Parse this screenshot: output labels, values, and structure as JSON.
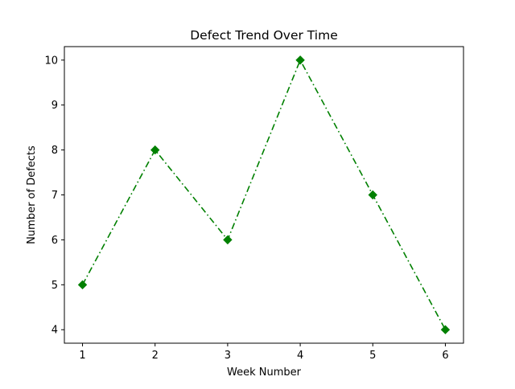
{
  "chart_data": {
    "type": "line",
    "title": "Defect Trend Over Time",
    "xlabel": "Week Number",
    "ylabel": "Number of Defects",
    "x": [
      1,
      2,
      3,
      4,
      5,
      6
    ],
    "series": [
      {
        "name": "Defects",
        "values": [
          5,
          8,
          6,
          10,
          7,
          4
        ],
        "color": "#008000",
        "line_style": "dash-dot",
        "marker": "diamond"
      }
    ],
    "xlim": [
      0.75,
      6.25
    ],
    "ylim": [
      3.7,
      10.3
    ],
    "xticks": [
      "1",
      "2",
      "3",
      "4",
      "5",
      "6"
    ],
    "yticks": [
      "4",
      "5",
      "6",
      "7",
      "8",
      "9",
      "10"
    ],
    "grid": false,
    "legend": "none"
  }
}
